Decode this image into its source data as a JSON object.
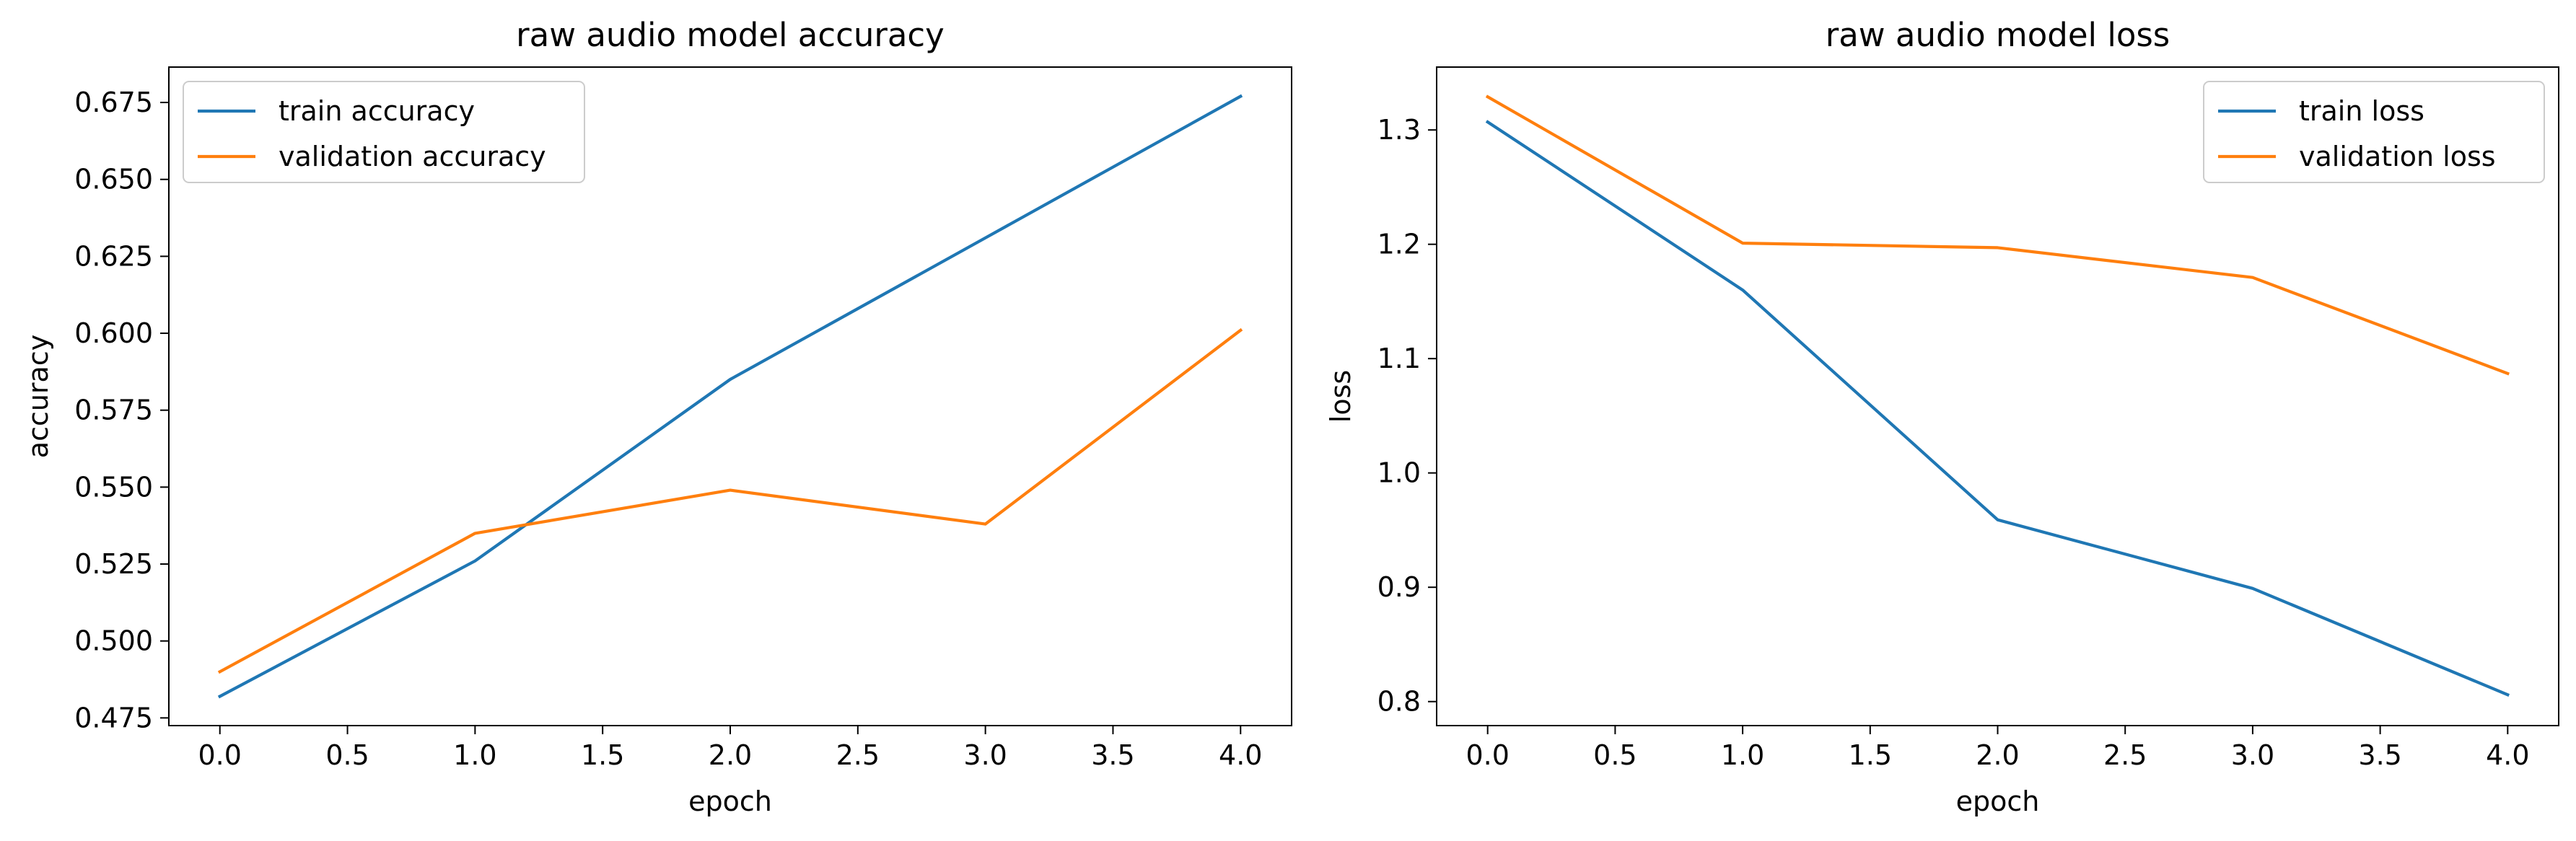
{
  "chart_data": [
    {
      "type": "line",
      "title": "raw audio model accuracy",
      "xlabel": "epoch",
      "ylabel": "accuracy",
      "x": [
        0,
        1,
        2,
        3,
        4
      ],
      "xlim": [
        -0.2,
        4.2
      ],
      "ylim": [
        0.4725,
        0.6865
      ],
      "xticks": [
        0,
        0.5,
        1,
        1.5,
        2,
        2.5,
        3,
        3.5,
        4
      ],
      "xtick_labels": [
        "0.0",
        "0.5",
        "1.0",
        "1.5",
        "2.0",
        "2.5",
        "3.0",
        "3.5",
        "4.0"
      ],
      "yticks": [
        0.475,
        0.5,
        0.525,
        0.55,
        0.575,
        0.6,
        0.625,
        0.65,
        0.675
      ],
      "ytick_labels": [
        "0.475",
        "0.500",
        "0.525",
        "0.550",
        "0.575",
        "0.600",
        "0.625",
        "0.650",
        "0.675"
      ],
      "grid": false,
      "legend_position": "top-left",
      "series": [
        {
          "name": "train accuracy",
          "color": "#1f77b4",
          "values": [
            0.482,
            0.526,
            0.585,
            0.631,
            0.677
          ]
        },
        {
          "name": "validation accuracy",
          "color": "#ff7f0e",
          "values": [
            0.49,
            0.535,
            0.549,
            0.538,
            0.601
          ]
        }
      ]
    },
    {
      "type": "line",
      "title": "raw audio model loss",
      "xlabel": "epoch",
      "ylabel": "loss",
      "x": [
        0,
        1,
        2,
        3,
        4
      ],
      "xlim": [
        -0.2,
        4.2
      ],
      "ylim": [
        0.779,
        1.355
      ],
      "xticks": [
        0,
        0.5,
        1,
        1.5,
        2,
        2.5,
        3,
        3.5,
        4
      ],
      "xtick_labels": [
        "0.0",
        "0.5",
        "1.0",
        "1.5",
        "2.0",
        "2.5",
        "3.0",
        "3.5",
        "4.0"
      ],
      "yticks": [
        0.8,
        0.9,
        1.0,
        1.1,
        1.2,
        1.3
      ],
      "ytick_labels": [
        "0.8",
        "0.9",
        "1.0",
        "1.1",
        "1.2",
        "1.3"
      ],
      "grid": false,
      "legend_position": "top-right",
      "series": [
        {
          "name": "train loss",
          "color": "#1f77b4",
          "values": [
            1.307,
            1.16,
            0.959,
            0.899,
            0.806
          ]
        },
        {
          "name": "validation loss",
          "color": "#ff7f0e",
          "values": [
            1.329,
            1.201,
            1.197,
            1.171,
            1.087
          ]
        }
      ]
    }
  ]
}
